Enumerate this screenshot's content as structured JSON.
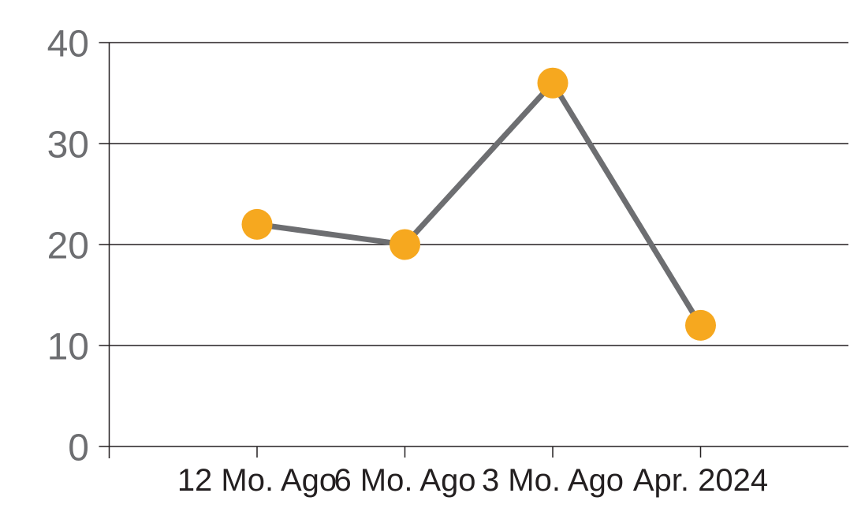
{
  "chart_data": {
    "type": "line",
    "title": "",
    "xlabel": "",
    "ylabel": "",
    "categories": [
      "12 Mo. Ago",
      "6 Mo. Ago",
      "3 Mo. Ago",
      "Apr. 2024"
    ],
    "values": [
      22,
      20,
      36,
      12
    ],
    "ylim": [
      0,
      40
    ],
    "yticks": [
      0,
      10,
      20,
      30,
      40
    ],
    "grid": "horizontal-only",
    "legend": "none",
    "marker_shape": "circle",
    "colors": {
      "marker": "#F6A81F",
      "line": "#6D6E71",
      "y_tick_label": "#6D6E71",
      "x_tick_label": "#231F20",
      "grid_and_axis": "#231F20",
      "background": "#FFFFFF"
    }
  }
}
